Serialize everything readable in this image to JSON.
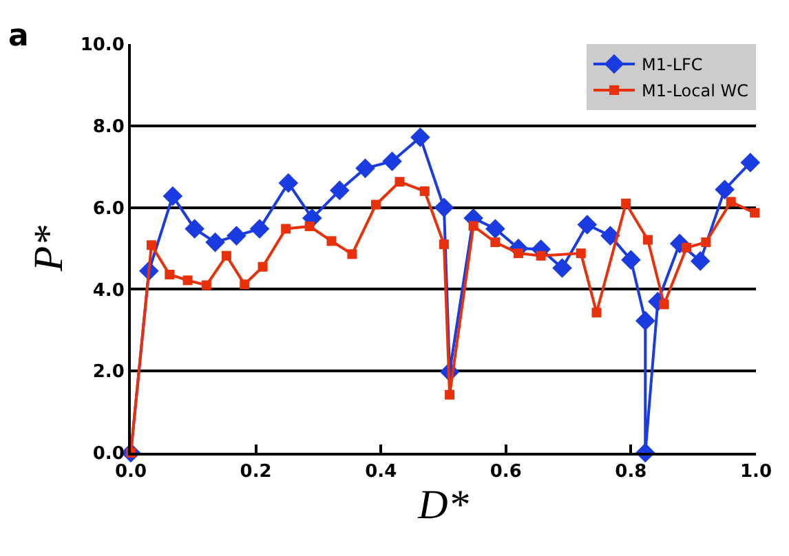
{
  "chart_data": {
    "type": "line",
    "xlabel": "D*",
    "ylabel": "P*",
    "annotations": [
      "a"
    ],
    "xlim": [
      0,
      1
    ],
    "ylim": [
      0,
      10
    ],
    "xticks": [
      {
        "value": 0,
        "label": "0.0"
      },
      {
        "value": 0.2,
        "label": "0.2"
      },
      {
        "value": 0.4,
        "label": "0.4"
      },
      {
        "value": 0.6,
        "label": "0.6"
      },
      {
        "value": 0.8,
        "label": "0.8"
      },
      {
        "value": 1,
        "label": "1.0"
      }
    ],
    "yticks": [
      {
        "value": 0,
        "label": "0.0"
      },
      {
        "value": 2,
        "label": "2.0"
      },
      {
        "value": 4,
        "label": "4.0"
      },
      {
        "value": 6,
        "label": "6.0"
      },
      {
        "value": 8,
        "label": "8.0"
      },
      {
        "value": 10,
        "label": "10.0"
      }
    ],
    "grid": "y",
    "legend": "top right",
    "line_style": "solid",
    "series": [
      {
        "name": "M1-LFC",
        "color": "#1a3be0",
        "marker": "diamond",
        "x": [
          0,
          0.029,
          0.067,
          0.102,
          0.135,
          0.169,
          0.206,
          0.252,
          0.29,
          0.334,
          0.375,
          0.418,
          0.463,
          0.501,
          0.51,
          0.548,
          0.583,
          0.62,
          0.656,
          0.69,
          0.73,
          0.767,
          0.8,
          0.823,
          0.823,
          0.843,
          0.878,
          0.911,
          0.95,
          0.991
        ],
        "values": [
          0,
          4.45,
          6.28,
          5.48,
          5.15,
          5.31,
          5.48,
          6.6,
          5.74,
          6.42,
          6.96,
          7.13,
          7.72,
          6.0,
          1.98,
          5.74,
          5.48,
          5.0,
          4.98,
          4.52,
          5.58,
          5.31,
          4.72,
          3.23,
          0,
          3.7,
          5.12,
          4.69,
          6.44,
          7.1
        ]
      },
      {
        "name": "M1-Local WC",
        "color": "#e8300a",
        "marker": "square",
        "x": [
          0,
          0.033,
          0.062,
          0.091,
          0.121,
          0.153,
          0.182,
          0.211,
          0.248,
          0.286,
          0.321,
          0.354,
          0.392,
          0.43,
          0.47,
          0.501,
          0.51,
          0.548,
          0.583,
          0.62,
          0.656,
          0.72,
          0.745,
          0.792,
          0.827,
          0.853,
          0.889,
          0.92,
          0.96,
          0.998
        ],
        "values": [
          0,
          5.08,
          4.36,
          4.22,
          4.1,
          4.82,
          4.12,
          4.55,
          5.48,
          5.54,
          5.18,
          4.86,
          6.07,
          6.63,
          6.4,
          5.1,
          1.42,
          5.55,
          5.15,
          4.88,
          4.82,
          4.88,
          3.43,
          6.1,
          5.21,
          3.63,
          5.02,
          5.15,
          6.14,
          5.87
        ]
      }
    ]
  }
}
